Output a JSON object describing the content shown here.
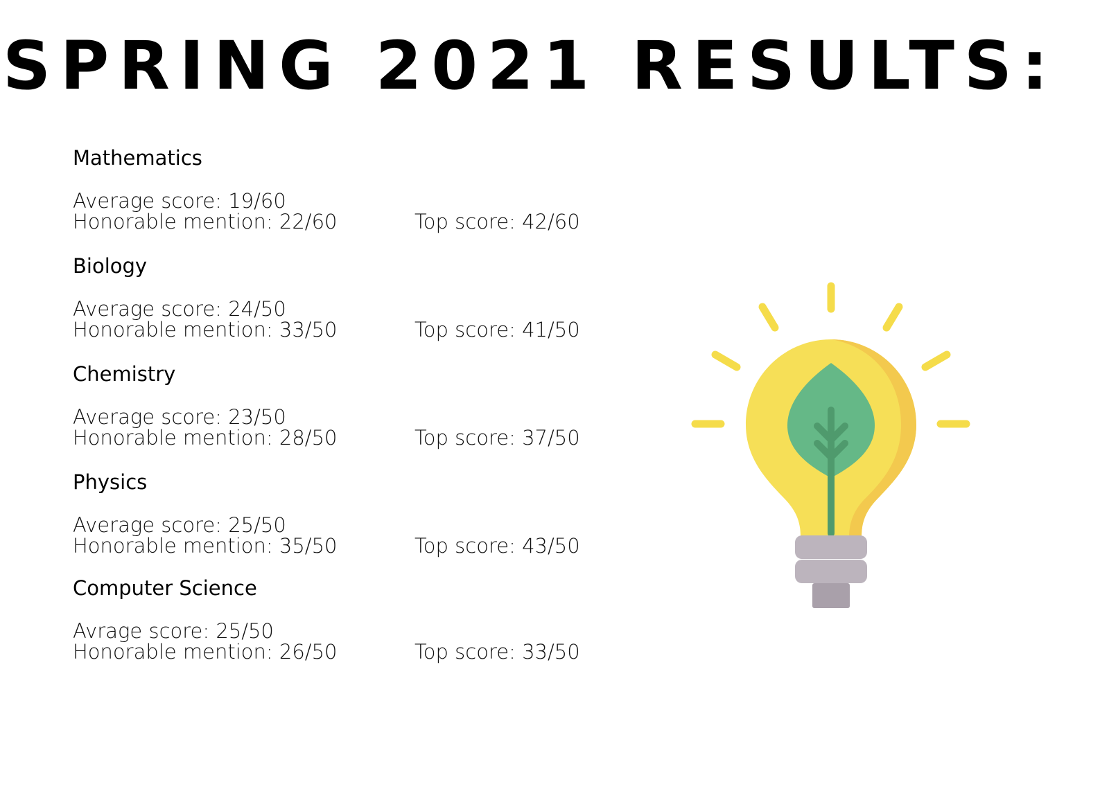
{
  "title": "SPRING 2021 RESULTS:",
  "subjects": [
    {
      "name": "Mathematics",
      "average": "Average score: 19/60",
      "honorable": "Honorable mention: 22/60",
      "top": "Top score: 42/60"
    },
    {
      "name": "Biology",
      "average": "Average score: 24/50",
      "honorable": "Honorable mention: 33/50",
      "top": "Top score: 41/50"
    },
    {
      "name": "Chemistry",
      "average": "Average score: 23/50",
      "honorable": "Honorable mention: 28/50",
      "top": "Top score: 37/50"
    },
    {
      "name": "Physics",
      "average": "Average score: 25/50",
      "honorable": "Honorable mention: 35/50",
      "top": "Top score: 43/50"
    },
    {
      "name": "Computer Science",
      "average": "Avrage score: 25/50",
      "honorable": "Honorable mention: 26/50",
      "top": "Top score: 33/50"
    }
  ]
}
